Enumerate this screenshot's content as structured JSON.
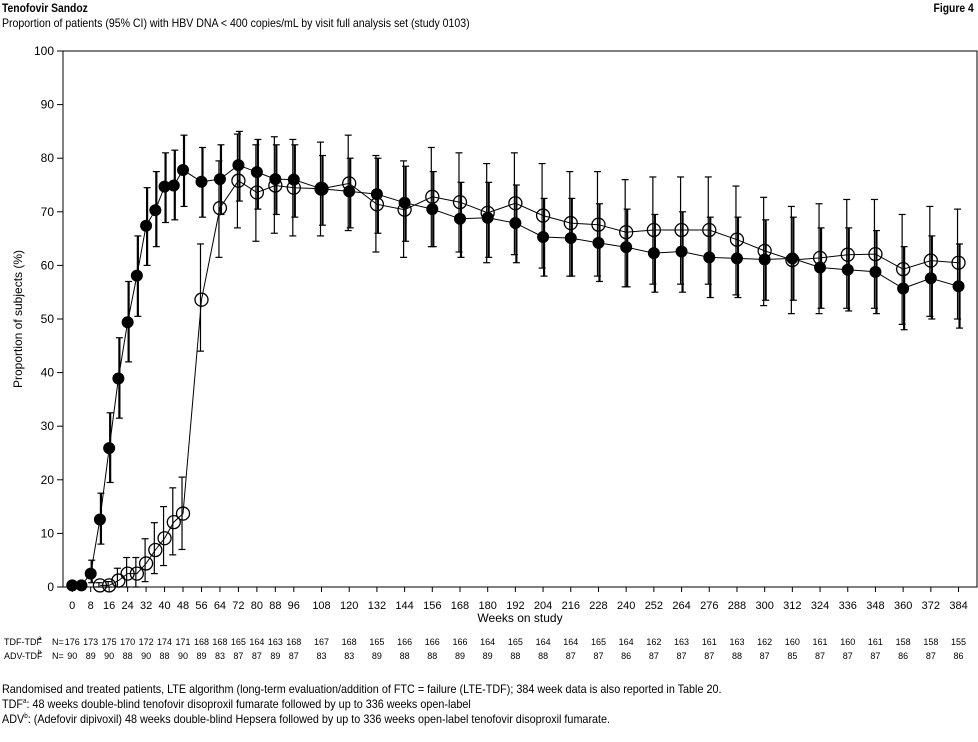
{
  "header": {
    "brand": "Tenofovir Sandoz",
    "figure_label": "Figure 4",
    "subtitle": "Proportion of patients (95% CI) with HBV DNA < 400 copies/mL by visit full analysis set (study 0103)"
  },
  "chart_data": {
    "type": "line",
    "title": "",
    "xlabel": "Weeks on study",
    "ylabel": "Proportion of subjects (%)",
    "ylim": [
      0,
      100
    ],
    "yticks": [
      0,
      10,
      20,
      30,
      40,
      50,
      60,
      70,
      80,
      90,
      100
    ],
    "xlim": [
      -4,
      392
    ],
    "xticks": [
      0,
      8,
      16,
      24,
      32,
      40,
      48,
      56,
      64,
      72,
      80,
      88,
      96,
      108,
      120,
      132,
      144,
      156,
      168,
      180,
      192,
      204,
      216,
      228,
      240,
      252,
      264,
      276,
      288,
      300,
      312,
      324,
      336,
      348,
      360,
      372,
      384
    ],
    "grid": false,
    "legend": "none",
    "series": [
      {
        "name": "TDF-TDF",
        "marker": "filled-circle",
        "color": "#000000",
        "points": [
          {
            "x": 0,
            "y": 0.3,
            "lo": 0,
            "hi": 0.6
          },
          {
            "x": 4,
            "y": 0.3,
            "lo": 0,
            "hi": 0.6
          },
          {
            "x": 8,
            "y": 2.5,
            "lo": 0.8,
            "hi": 5
          },
          {
            "x": 12,
            "y": 12.6,
            "lo": 8,
            "hi": 17.5
          },
          {
            "x": 16,
            "y": 25.9,
            "lo": 19.5,
            "hi": 32.5
          },
          {
            "x": 20,
            "y": 38.9,
            "lo": 31.5,
            "hi": 46.5
          },
          {
            "x": 24,
            "y": 49.4,
            "lo": 42,
            "hi": 57
          },
          {
            "x": 28,
            "y": 58.1,
            "lo": 50.5,
            "hi": 65.5
          },
          {
            "x": 32,
            "y": 67.4,
            "lo": 60,
            "hi": 74.5
          },
          {
            "x": 36,
            "y": 70.3,
            "lo": 63.5,
            "hi": 77.5
          },
          {
            "x": 40,
            "y": 74.7,
            "lo": 68,
            "hi": 81
          },
          {
            "x": 44,
            "y": 74.9,
            "lo": 68.5,
            "hi": 81.5
          },
          {
            "x": 48,
            "y": 77.8,
            "lo": 71,
            "hi": 84.3
          },
          {
            "x": 56,
            "y": 75.6,
            "lo": 69,
            "hi": 82
          },
          {
            "x": 64,
            "y": 76.1,
            "lo": 69.5,
            "hi": 82.5
          },
          {
            "x": 72,
            "y": 78.7,
            "lo": 72,
            "hi": 85
          },
          {
            "x": 80,
            "y": 77.4,
            "lo": 70.5,
            "hi": 83.5
          },
          {
            "x": 88,
            "y": 76.1,
            "lo": 69.5,
            "hi": 82.5
          },
          {
            "x": 96,
            "y": 76.0,
            "lo": 69,
            "hi": 82.5
          },
          {
            "x": 108,
            "y": 74.3,
            "lo": 67.5,
            "hi": 80.5
          },
          {
            "x": 120,
            "y": 73.8,
            "lo": 67,
            "hi": 80
          },
          {
            "x": 132,
            "y": 73.3,
            "lo": 66,
            "hi": 80
          },
          {
            "x": 144,
            "y": 71.7,
            "lo": 64.5,
            "hi": 78.5
          },
          {
            "x": 156,
            "y": 70.5,
            "lo": 63.5,
            "hi": 77.5
          },
          {
            "x": 168,
            "y": 68.7,
            "lo": 61.5,
            "hi": 75.5
          },
          {
            "x": 180,
            "y": 68.9,
            "lo": 61.5,
            "hi": 75.5
          },
          {
            "x": 192,
            "y": 67.9,
            "lo": 60.5,
            "hi": 75
          },
          {
            "x": 204,
            "y": 65.3,
            "lo": 58,
            "hi": 72.5
          },
          {
            "x": 216,
            "y": 65.1,
            "lo": 58,
            "hi": 72.5
          },
          {
            "x": 228,
            "y": 64.2,
            "lo": 57,
            "hi": 71.5
          },
          {
            "x": 240,
            "y": 63.4,
            "lo": 56,
            "hi": 70.5
          },
          {
            "x": 252,
            "y": 62.3,
            "lo": 55,
            "hi": 69.5
          },
          {
            "x": 264,
            "y": 62.6,
            "lo": 55,
            "hi": 70
          },
          {
            "x": 276,
            "y": 61.5,
            "lo": 54,
            "hi": 69
          },
          {
            "x": 288,
            "y": 61.3,
            "lo": 54,
            "hi": 69
          },
          {
            "x": 300,
            "y": 61.1,
            "lo": 53.5,
            "hi": 68.5
          },
          {
            "x": 312,
            "y": 61.3,
            "lo": 53.5,
            "hi": 69
          },
          {
            "x": 324,
            "y": 59.6,
            "lo": 52,
            "hi": 67
          },
          {
            "x": 336,
            "y": 59.2,
            "lo": 51.5,
            "hi": 67
          },
          {
            "x": 348,
            "y": 58.8,
            "lo": 51,
            "hi": 66.5
          },
          {
            "x": 360,
            "y": 55.7,
            "lo": 48,
            "hi": 63.5
          },
          {
            "x": 372,
            "y": 57.6,
            "lo": 50,
            "hi": 65.5
          },
          {
            "x": 384,
            "y": 56.1,
            "lo": 48.3,
            "hi": 64
          }
        ]
      },
      {
        "name": "ADV-TDF",
        "marker": "open-circle",
        "color": "#000000",
        "points": [
          {
            "x": 12,
            "y": 0.3,
            "lo": 0,
            "hi": 0.8
          },
          {
            "x": 16,
            "y": 0.3,
            "lo": 0,
            "hi": 1
          },
          {
            "x": 20,
            "y": 1.2,
            "lo": 0,
            "hi": 3.5
          },
          {
            "x": 24,
            "y": 2.5,
            "lo": 0,
            "hi": 5.5
          },
          {
            "x": 28,
            "y": 2.5,
            "lo": 0,
            "hi": 5.5
          },
          {
            "x": 32,
            "y": 4.4,
            "lo": 1,
            "hi": 9
          },
          {
            "x": 36,
            "y": 6.9,
            "lo": 2.5,
            "hi": 12
          },
          {
            "x": 40,
            "y": 9.1,
            "lo": 4,
            "hi": 15
          },
          {
            "x": 44,
            "y": 12.1,
            "lo": 6,
            "hi": 18.5
          },
          {
            "x": 48,
            "y": 13.7,
            "lo": 7,
            "hi": 20.5
          },
          {
            "x": 56,
            "y": 53.6,
            "lo": 44,
            "hi": 64
          },
          {
            "x": 64,
            "y": 70.7,
            "lo": 61.5,
            "hi": 79.5
          },
          {
            "x": 72,
            "y": 75.8,
            "lo": 67,
            "hi": 84.5
          },
          {
            "x": 80,
            "y": 73.6,
            "lo": 64.5,
            "hi": 82.5
          },
          {
            "x": 88,
            "y": 74.9,
            "lo": 66,
            "hi": 84
          },
          {
            "x": 96,
            "y": 74.5,
            "lo": 65.5,
            "hi": 83.5
          },
          {
            "x": 108,
            "y": 74.3,
            "lo": 65.5,
            "hi": 83
          },
          {
            "x": 120,
            "y": 75.3,
            "lo": 66.5,
            "hi": 84.3
          },
          {
            "x": 132,
            "y": 71.4,
            "lo": 62.5,
            "hi": 80.5
          },
          {
            "x": 144,
            "y": 70.4,
            "lo": 61.5,
            "hi": 79.5
          },
          {
            "x": 156,
            "y": 72.8,
            "lo": 63.5,
            "hi": 82
          },
          {
            "x": 168,
            "y": 71.8,
            "lo": 62.5,
            "hi": 81
          },
          {
            "x": 180,
            "y": 69.8,
            "lo": 60.5,
            "hi": 79
          },
          {
            "x": 192,
            "y": 71.6,
            "lo": 62,
            "hi": 81
          },
          {
            "x": 204,
            "y": 69.3,
            "lo": 59.5,
            "hi": 79
          },
          {
            "x": 216,
            "y": 67.9,
            "lo": 58,
            "hi": 77.5
          },
          {
            "x": 228,
            "y": 67.6,
            "lo": 58,
            "hi": 77.5
          },
          {
            "x": 240,
            "y": 66.2,
            "lo": 56,
            "hi": 76
          },
          {
            "x": 252,
            "y": 66.6,
            "lo": 56.5,
            "hi": 76.5
          },
          {
            "x": 264,
            "y": 66.6,
            "lo": 56.5,
            "hi": 76.5
          },
          {
            "x": 276,
            "y": 66.6,
            "lo": 56.5,
            "hi": 76.5
          },
          {
            "x": 288,
            "y": 64.8,
            "lo": 54.5,
            "hi": 74.8
          },
          {
            "x": 300,
            "y": 62.7,
            "lo": 52.5,
            "hi": 72.7
          },
          {
            "x": 312,
            "y": 61.0,
            "lo": 51,
            "hi": 71
          },
          {
            "x": 324,
            "y": 61.4,
            "lo": 51,
            "hi": 71.5
          },
          {
            "x": 336,
            "y": 62.0,
            "lo": 52,
            "hi": 72.3
          },
          {
            "x": 348,
            "y": 62.1,
            "lo": 52,
            "hi": 72.3
          },
          {
            "x": 360,
            "y": 59.3,
            "lo": 49,
            "hi": 69.5
          },
          {
            "x": 372,
            "y": 60.9,
            "lo": 50.5,
            "hi": 71
          },
          {
            "x": 384,
            "y": 60.5,
            "lo": 50,
            "hi": 70.5
          }
        ]
      }
    ]
  },
  "n_table": {
    "rows": [
      {
        "label": "TDF-TDF",
        "label_mark": "a",
        "prefix": "N=",
        "entries": [
          {
            "x": 0,
            "n": "176"
          },
          {
            "x": 8,
            "n": "173"
          },
          {
            "x": 16,
            "n": "175"
          },
          {
            "x": 24,
            "n": "170"
          },
          {
            "x": 32,
            "n": "172"
          },
          {
            "x": 40,
            "n": "174"
          },
          {
            "x": 48,
            "n": "171"
          },
          {
            "x": 56,
            "n": "168"
          },
          {
            "x": 64,
            "n": "168"
          },
          {
            "x": 72,
            "n": "165"
          },
          {
            "x": 80,
            "n": "164"
          },
          {
            "x": 88,
            "n": "163"
          },
          {
            "x": 96,
            "n": "168"
          },
          {
            "x": 108,
            "n": "167"
          },
          {
            "x": 120,
            "n": "168"
          },
          {
            "x": 132,
            "n": "165"
          },
          {
            "x": 144,
            "n": "166"
          },
          {
            "x": 156,
            "n": "166"
          },
          {
            "x": 168,
            "n": "166"
          },
          {
            "x": 180,
            "n": "164"
          },
          {
            "x": 192,
            "n": "165"
          },
          {
            "x": 204,
            "n": "164"
          },
          {
            "x": 216,
            "n": "164"
          },
          {
            "x": 228,
            "n": "165"
          },
          {
            "x": 240,
            "n": "164"
          },
          {
            "x": 252,
            "n": "162"
          },
          {
            "x": 264,
            "n": "163"
          },
          {
            "x": 276,
            "n": "161"
          },
          {
            "x": 288,
            "n": "163"
          },
          {
            "x": 300,
            "n": "162"
          },
          {
            "x": 312,
            "n": "160"
          },
          {
            "x": 324,
            "n": "161"
          },
          {
            "x": 336,
            "n": "160"
          },
          {
            "x": 348,
            "n": "161"
          },
          {
            "x": 360,
            "n": "158"
          },
          {
            "x": 372,
            "n": "158"
          },
          {
            "x": 384,
            "n": "155"
          }
        ]
      },
      {
        "label": "ADV-TDF",
        "label_mark": "b",
        "prefix": "N=",
        "entries": [
          {
            "x": 0,
            "n": "90"
          },
          {
            "x": 8,
            "n": "89"
          },
          {
            "x": 16,
            "n": "90"
          },
          {
            "x": 24,
            "n": "88"
          },
          {
            "x": 32,
            "n": "90"
          },
          {
            "x": 40,
            "n": "88"
          },
          {
            "x": 48,
            "n": "90"
          },
          {
            "x": 56,
            "n": "89"
          },
          {
            "x": 64,
            "n": "83"
          },
          {
            "x": 72,
            "n": "87"
          },
          {
            "x": 80,
            "n": "87"
          },
          {
            "x": 88,
            "n": "89"
          },
          {
            "x": 96,
            "n": "87"
          },
          {
            "x": 108,
            "n": "83"
          },
          {
            "x": 120,
            "n": "83"
          },
          {
            "x": 132,
            "n": "89"
          },
          {
            "x": 144,
            "n": "88"
          },
          {
            "x": 156,
            "n": "88"
          },
          {
            "x": 168,
            "n": "89"
          },
          {
            "x": 180,
            "n": "89"
          },
          {
            "x": 192,
            "n": "88"
          },
          {
            "x": 204,
            "n": "88"
          },
          {
            "x": 216,
            "n": "87"
          },
          {
            "x": 228,
            "n": "87"
          },
          {
            "x": 240,
            "n": "86"
          },
          {
            "x": 252,
            "n": "87"
          },
          {
            "x": 264,
            "n": "87"
          },
          {
            "x": 276,
            "n": "87"
          },
          {
            "x": 288,
            "n": "88"
          },
          {
            "x": 300,
            "n": "87"
          },
          {
            "x": 312,
            "n": "85"
          },
          {
            "x": 324,
            "n": "87"
          },
          {
            "x": 336,
            "n": "87"
          },
          {
            "x": 348,
            "n": "87"
          },
          {
            "x": 360,
            "n": "86"
          },
          {
            "x": 372,
            "n": "87"
          },
          {
            "x": 384,
            "n": "86"
          }
        ]
      }
    ]
  },
  "footnotes": {
    "line1": "Randomised and treated patients, LTE algorithm (long-term evaluation/addition of FTC = failure (LTE-TDF); 384 week data is also reported in Table 20.",
    "line2_term": "TDF",
    "line2_mark": "a",
    "line2_text": ": 48 weeks double-blind tenofovir disoproxil fumarate followed by up to 336 weeks open-label",
    "line3_term": "ADV",
    "line3_mark": "b",
    "line3_text": ": (Adefovir dipivoxil) 48 weeks double-blind Hepsera followed by up to 336 weeks open-label tenofovir disoproxil fumarate."
  }
}
